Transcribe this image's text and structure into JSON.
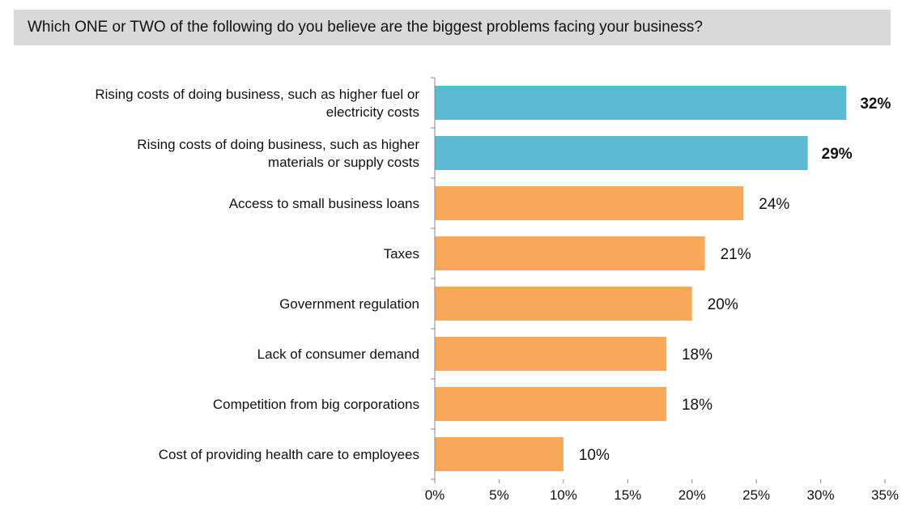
{
  "question": "Which ONE or TWO of the following do you believe are the biggest problems facing your business?",
  "chart_data": {
    "type": "bar",
    "orientation": "horizontal",
    "title": "Which ONE or TWO of the following do you believe are the biggest problems facing your business?",
    "categories": [
      [
        "Rising costs of doing business, such as higher fuel or",
        "electricity costs"
      ],
      [
        "Rising costs of doing business, such as higher",
        "materials or supply costs"
      ],
      [
        "Access to small business loans"
      ],
      [
        "Taxes"
      ],
      [
        "Government regulation"
      ],
      [
        "Lack of consumer demand"
      ],
      [
        "Competition from big corporations"
      ],
      [
        "Cost of providing health care to employees"
      ]
    ],
    "values": [
      32,
      29,
      24,
      21,
      20,
      18,
      18,
      10
    ],
    "value_labels": [
      "32%",
      "29%",
      "24%",
      "21%",
      "20%",
      "18%",
      "18%",
      "10%"
    ],
    "highlight": [
      true,
      true,
      false,
      false,
      false,
      false,
      false,
      false
    ],
    "colors": {
      "highlight": "#5bbad1",
      "default": "#f9a85a",
      "axis": "#888888"
    },
    "xlim": [
      0,
      35
    ],
    "xticks": [
      0,
      5,
      10,
      15,
      20,
      25,
      30,
      35
    ],
    "xtick_labels": [
      "0%",
      "5%",
      "10%",
      "15%",
      "20%",
      "25%",
      "30%",
      "35%"
    ],
    "grid": false
  }
}
